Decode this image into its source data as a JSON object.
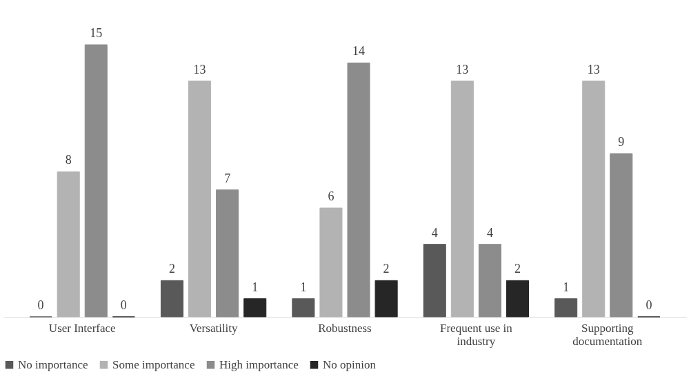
{
  "chart_data": {
    "type": "bar",
    "categories": [
      "User Interface",
      "Versatility",
      "Robustness",
      "Frequent use in industry",
      "Supporting documentation"
    ],
    "series": [
      {
        "name": "No importance",
        "color": "#595959",
        "values": [
          0,
          2,
          1,
          4,
          1
        ]
      },
      {
        "name": "Some importance",
        "color": "#b3b3b3",
        "values": [
          8,
          13,
          6,
          13,
          13
        ]
      },
      {
        "name": "High importance",
        "color": "#8c8c8c",
        "values": [
          15,
          7,
          14,
          4,
          9
        ]
      },
      {
        "name": "No opinion",
        "color": "#262626",
        "values": [
          0,
          1,
          2,
          2,
          0
        ]
      }
    ],
    "data_labels": true,
    "legend": "bottom",
    "grid": false
  }
}
